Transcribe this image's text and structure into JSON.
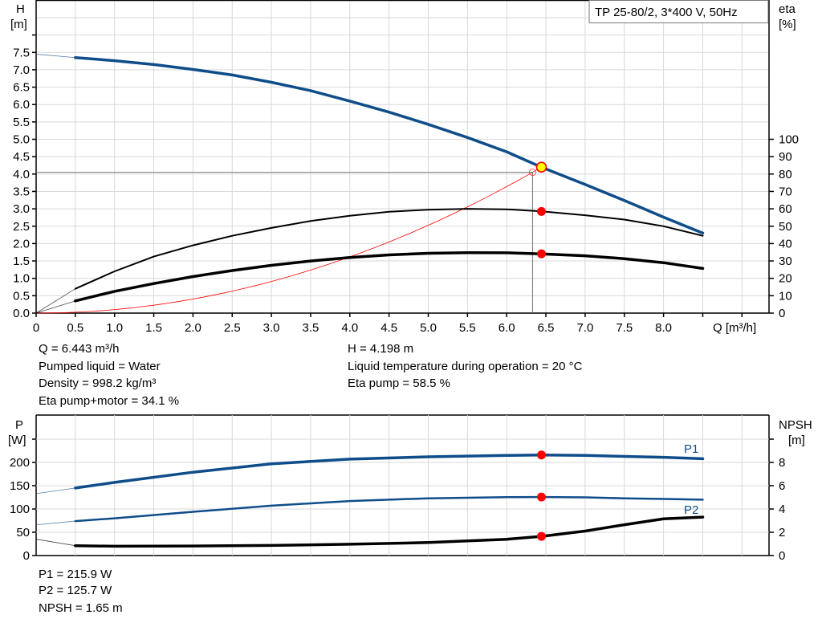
{
  "chart_data": [
    {
      "type": "line",
      "title": "TP 25-80/2, 3*400 V, 50Hz",
      "xlabel": "Q [m³/h]",
      "ylabel": "H\n[m]",
      "ylabel_line1": "H",
      "ylabel_line2": "[m]",
      "y2label_line1": "eta",
      "y2label_line2": "[%]",
      "xlim": [
        0,
        9.35
      ],
      "ylim": [
        0,
        9
      ],
      "y2lim": [
        0,
        180
      ],
      "grid": true,
      "x_ticks": [
        "0",
        "0.5",
        "1.0",
        "1.5",
        "2.0",
        "2.5",
        "3.0",
        "3.5",
        "4.0",
        "4.5",
        "5.0",
        "5.5",
        "6.0",
        "6.5",
        "7.0",
        "7.5",
        "8.0"
      ],
      "y_ticks": [
        "0.0",
        "0.5",
        "1.0",
        "1.5",
        "2.0",
        "2.5",
        "3.0",
        "3.5",
        "4.0",
        "4.5",
        "5.0",
        "5.5",
        "6.0",
        "6.5",
        "7.0",
        "7.5"
      ],
      "y2_ticks": [
        "0",
        "10",
        "20",
        "30",
        "40",
        "50",
        "60",
        "70",
        "80",
        "90",
        "100"
      ],
      "x": [
        0.5,
        1,
        1.5,
        2,
        2.5,
        3,
        3.5,
        4,
        4.5,
        5,
        5.5,
        6,
        6.443,
        7,
        7.5,
        8,
        8.5
      ],
      "series": [
        {
          "axis": "left",
          "color": "#0f4d8a",
          "values": [
            7.35,
            7.26,
            7.15,
            7.01,
            6.85,
            6.64,
            6.4,
            6.1,
            5.78,
            5.43,
            5.05,
            4.64,
            4.198,
            3.7,
            3.24,
            2.76,
            2.3
          ],
          "extrapolated_start": [
            0,
            7.45
          ]
        },
        {
          "axis": "right",
          "color": "#000000",
          "values": [
            14,
            24,
            32.5,
            39,
            44.5,
            49,
            53,
            56,
            58.3,
            59.5,
            60,
            59.7,
            58.5,
            56.3,
            53.8,
            50,
            44.5
          ],
          "extrapolated_start": [
            0,
            0
          ]
        },
        {
          "axis": "right",
          "color": "#000000",
          "values": [
            7,
            12.5,
            17,
            21,
            24.5,
            27.5,
            30,
            32,
            33.5,
            34.4,
            34.8,
            34.7,
            34.1,
            33,
            31.3,
            29,
            25.7
          ],
          "extrapolated_start": [
            0,
            0
          ]
        }
      ],
      "system_curve": {
        "color": "#ff0000",
        "end_point": [
          6.33,
          4.05
        ],
        "to": [
          6.443,
          4.198
        ]
      },
      "duty_point": {
        "Q": 6.443,
        "H": 4.198,
        "eta_pump": 58.5,
        "eta_total": 34.1
      }
    },
    {
      "type": "line",
      "ylabel_line1": "P",
      "ylabel_line2": "[W]",
      "y2label_line1": "NPSH",
      "y2label_line2": "[m]",
      "xlim": [
        0,
        9.35
      ],
      "ylim": [
        0,
        300
      ],
      "y2lim": [
        0,
        12
      ],
      "grid": true,
      "y_ticks": [
        "0",
        "50",
        "100",
        "150",
        "200"
      ],
      "y2_ticks": [
        "0",
        "2",
        "4",
        "6",
        "8"
      ],
      "x": [
        0.5,
        1,
        2,
        3,
        4,
        5,
        6,
        6.443,
        7,
        7.5,
        8,
        8.5
      ],
      "series": [
        {
          "name": "P1",
          "axis": "left",
          "color": "#0f4d8a",
          "values": [
            145,
            157,
            179,
            197,
            207,
            212,
            215,
            215.9,
            215,
            213,
            211,
            208
          ],
          "extrapolated_start": [
            0,
            133
          ]
        },
        {
          "name": "P2",
          "axis": "left",
          "color": "#0f4d8a",
          "values": [
            74,
            80,
            94,
            107,
            117,
            123,
            125.5,
            125.7,
            125,
            123,
            121.5,
            120
          ],
          "extrapolated_start": [
            0,
            66
          ]
        },
        {
          "axis": "right",
          "color": "#000000",
          "values": [
            0.85,
            0.8,
            0.82,
            0.87,
            0.97,
            1.12,
            1.4,
            1.65,
            2.1,
            2.65,
            3.15,
            3.3
          ],
          "extrapolated_start": [
            0,
            1.4
          ]
        }
      ],
      "duty_point": {
        "Q": 6.443,
        "P1": 215.9,
        "P2": 125.7,
        "NPSH": 1.65
      }
    }
  ],
  "info_top_left": [
    "Q = 6.443 m³/h",
    "Pumped liquid = Water",
    "Density = 998.2 kg/m³",
    "Eta pump+motor = 34.1 %"
  ],
  "info_top_right": [
    "H = 4.198 m",
    "Liquid temperature during operation = 20 °C",
    "Eta pump = 58.5 %"
  ],
  "info_bottom": [
    "P1 = 215.9 W",
    "P2 = 125.7 W",
    "NPSH = 1.65 m"
  ]
}
